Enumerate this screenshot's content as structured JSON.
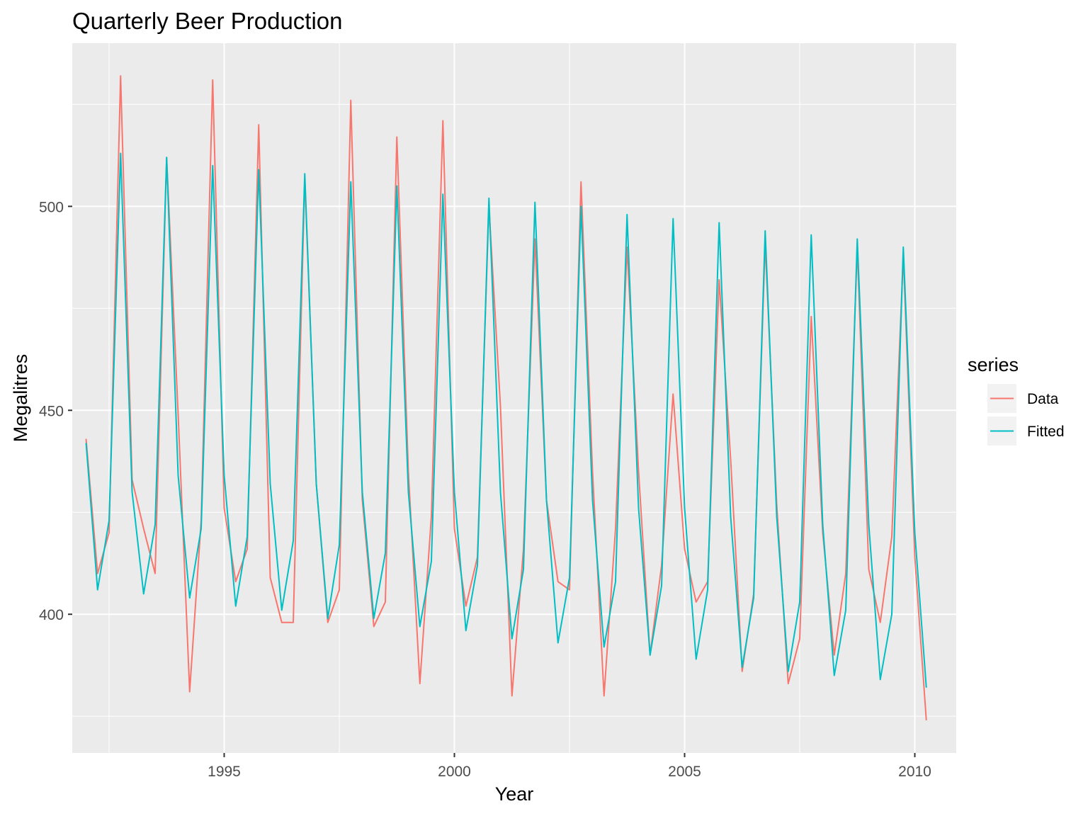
{
  "chart_data": {
    "type": "line",
    "title": "Quarterly Beer Production",
    "xlabel": "Year",
    "ylabel": "Megalitres",
    "xlim": [
      1991.7,
      2010.9
    ],
    "ylim": [
      366,
      540
    ],
    "x_ticks": [
      1995,
      2000,
      2005,
      2010
    ],
    "y_ticks": [
      400,
      450,
      500
    ],
    "grid": true,
    "background": "#ebebeb",
    "legend": {
      "title": "series",
      "position": "right"
    },
    "x_start": 1992.0,
    "x_step": 0.25,
    "series": [
      {
        "name": "Data",
        "color": "#f8766d",
        "values": [
          443,
          410,
          420,
          532,
          433,
          421,
          410,
          512,
          449,
          381,
          423,
          531,
          426,
          408,
          416,
          520,
          409,
          398,
          398,
          507,
          432,
          398,
          406,
          526,
          428,
          397,
          403,
          517,
          435,
          383,
          424,
          521,
          421,
          402,
          414,
          500,
          451,
          380,
          416,
          492,
          428,
          408,
          406,
          506,
          435,
          380,
          421,
          490,
          435,
          390,
          412,
          454,
          416,
          403,
          408,
          482,
          438,
          386,
          405,
          491,
          427,
          383,
          394,
          473,
          420,
          390,
          410,
          490,
          411,
          398,
          419,
          488,
          414,
          374
        ]
      },
      {
        "name": "Fitted",
        "color": "#00bfc4",
        "values": [
          442,
          406,
          423,
          513,
          430,
          405,
          422,
          512,
          434,
          404,
          421,
          510,
          434,
          402,
          419,
          509,
          432,
          401,
          418,
          508,
          432,
          399,
          417,
          506,
          430,
          399,
          415,
          505,
          430,
          397,
          413,
          503,
          430,
          396,
          412,
          502,
          430,
          394,
          411,
          501,
          428,
          393,
          409,
          500,
          428,
          392,
          408,
          498,
          426,
          390,
          407,
          497,
          426,
          389,
          406,
          496,
          424,
          387,
          404,
          494,
          424,
          386,
          403,
          493,
          422,
          385,
          401,
          492,
          422,
          384,
          400,
          490,
          420,
          382
        ]
      }
    ]
  }
}
